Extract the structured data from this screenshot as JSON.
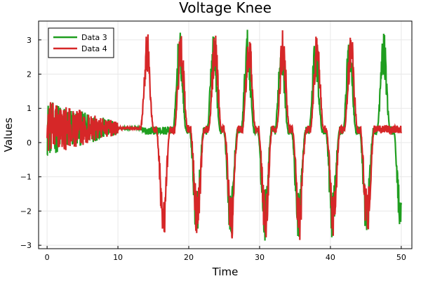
{
  "chart_data": {
    "type": "line",
    "title": "Voltage Knee",
    "xlabel": "Time",
    "ylabel": "Values",
    "xlim": [
      -1.2,
      51.5
    ],
    "ylim": [
      -3.1,
      3.55
    ],
    "xticks": [
      0,
      10,
      20,
      30,
      40,
      50
    ],
    "yticks": [
      -3,
      -2,
      -1,
      0,
      1,
      2,
      3
    ],
    "ytick_labels": [
      "−3",
      "−2",
      "−1",
      "0",
      "1",
      "2",
      "3"
    ],
    "grid": true,
    "legend_position": "top-left",
    "period": 4.8,
    "series": [
      {
        "name": "Data 3",
        "color": "#1f9e1f",
        "startup_end": 10.0,
        "steady_value": 0.42,
        "upper_peak_times": [
          18.7,
          23.5,
          28.3,
          33.1,
          37.9,
          42.7,
          47.5
        ],
        "upper_peak_value": 3.3,
        "lower_peak_times": [
          21.1,
          25.9,
          30.7,
          35.5,
          40.3,
          45.1,
          49.9
        ],
        "lower_peak_value": -2.9,
        "baseline_value": 0.35
      },
      {
        "name": "Data 4",
        "color": "#d62728",
        "startup_end": 10.0,
        "steady_value": 0.42,
        "upper_peak_times": [
          14.1,
          18.9,
          23.7,
          28.5,
          33.3,
          38.1,
          42.9
        ],
        "upper_peak_value": 3.35,
        "lower_peak_times": [
          16.4,
          21.2,
          26.0,
          30.8,
          35.6,
          40.4,
          45.2
        ],
        "lower_peak_value": -2.95,
        "baseline_value": 0.38
      }
    ]
  }
}
